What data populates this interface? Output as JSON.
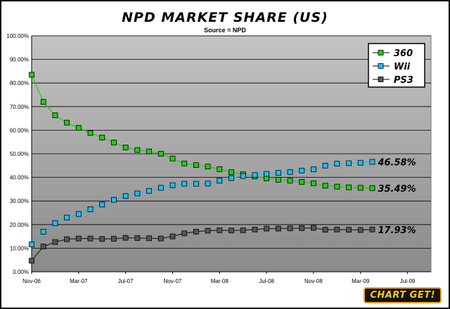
{
  "chart_data": {
    "type": "line",
    "title": "NPD MARKET SHARE (US)",
    "subtitle": "Source = NPD",
    "ylim": [
      0,
      100
    ],
    "y_ticks": [
      "0.00%",
      "10.00%",
      "20.00%",
      "30.00%",
      "40.00%",
      "50.00%",
      "60.00%",
      "70.00%",
      "80.00%",
      "90.00%",
      "100.00%"
    ],
    "x_ticks": [
      "Nov-06",
      "Mar-07",
      "Jul-07",
      "Nov-07",
      "Mar-08",
      "Jul-08",
      "Nov-08",
      "Mar-09",
      "Jul-09"
    ],
    "x_start": "2006-11",
    "x_end": "2009-09",
    "grid": true,
    "legend_position": "top-right",
    "series": [
      {
        "name": "360",
        "color": "#22cc11",
        "values": [
          83.5,
          72,
          66.3,
          63.2,
          61,
          58.8,
          56.9,
          54.8,
          52.7,
          51.6,
          51,
          50,
          48,
          45.9,
          45.2,
          44.6,
          43.5,
          42.2,
          41.3,
          40.4,
          39.6,
          39,
          38.6,
          38.1,
          37.5,
          36.5,
          36.1,
          35.8,
          35.6,
          35.49
        ],
        "end_label": "35.49%"
      },
      {
        "name": "Wii",
        "color": "#22bbee",
        "values": [
          11.6,
          17,
          20.6,
          23,
          24.5,
          26.5,
          28.5,
          30.5,
          32.1,
          33.2,
          34.3,
          35.6,
          36.7,
          37.3,
          37.3,
          37.4,
          38.6,
          39.7,
          40.6,
          41,
          41.5,
          41.9,
          42.3,
          42.9,
          43.4,
          45,
          45.8,
          46,
          46.2,
          46.58
        ],
        "end_label": "46.58%"
      },
      {
        "name": "PS3",
        "color": "#555555",
        "values": [
          4.7,
          10.7,
          12.6,
          13.8,
          14.1,
          14.1,
          13.9,
          14,
          14.4,
          14.3,
          14.2,
          14.1,
          15,
          16.3,
          17,
          17.4,
          17.6,
          17.5,
          17.6,
          17.9,
          18.3,
          18.3,
          18.4,
          18.5,
          18.6,
          17.8,
          17.9,
          17.8,
          17.7,
          17.93
        ],
        "end_label": "17.93%"
      }
    ]
  },
  "logo_text": "CHART GET!"
}
